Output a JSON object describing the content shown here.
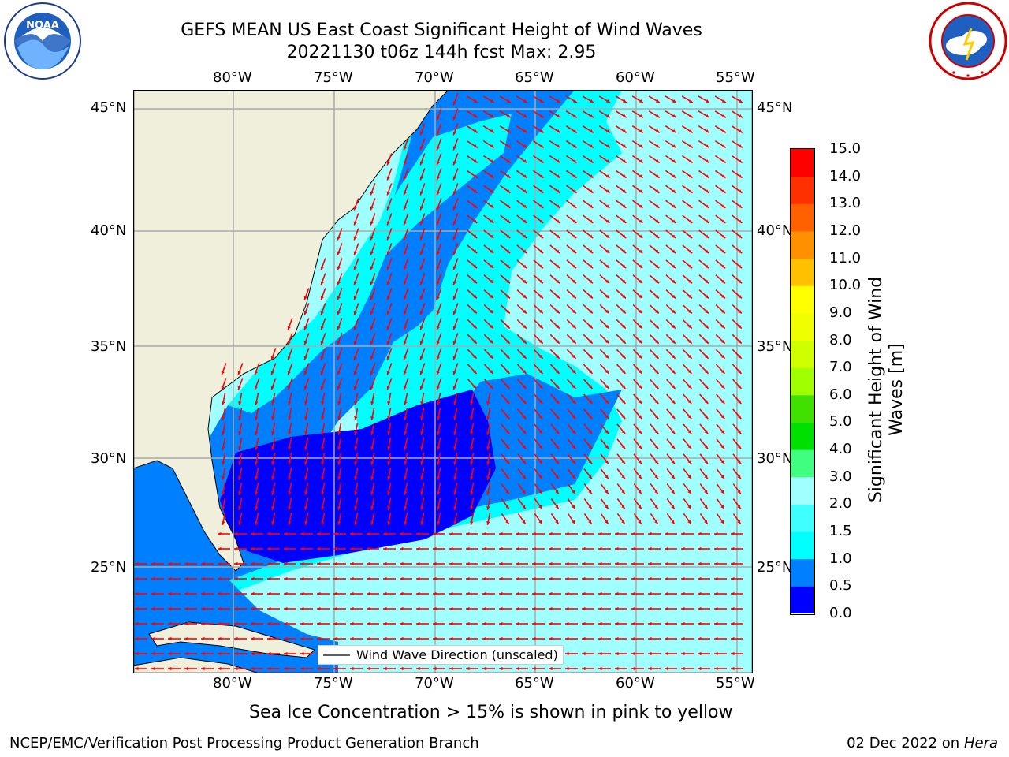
{
  "title_line1": "GEFS MEAN US East Coast Significant Height of Wind Waves",
  "title_line2": "20221130 t06z 144h fcst   Max: 2.95",
  "logos": {
    "left": "NOAA",
    "left_ring_text": "NATIONAL OCEANIC AND ATMOSPHERIC ADMINISTRATION · U.S. DEPARTMENT OF COMMERCE",
    "right_ring_text": "NATIONAL WEATHER SERVICE"
  },
  "lon_ticks": [
    "80°W",
    "75°W",
    "70°W",
    "65°W",
    "60°W",
    "55°W"
  ],
  "lat_ticks": [
    "45°N",
    "40°N",
    "35°N",
    "30°N",
    "25°N"
  ],
  "colorbar": {
    "label_line1": "Significant Height of Wind",
    "label_line2": "Waves [m]",
    "ticks": [
      "15.0",
      "14.0",
      "13.0",
      "12.0",
      "11.0",
      "10.0",
      "9.0",
      "8.0",
      "7.0",
      "6.0",
      "5.0",
      "4.0",
      "3.0",
      "2.0",
      "1.5",
      "1.0",
      "0.5",
      "0.0"
    ],
    "colors_bottom_to_top": [
      "#0000ff",
      "#0080ff",
      "#00ffff",
      "#40ffff",
      "#a0ffff",
      "#40ff80",
      "#00e000",
      "#40e000",
      "#a0ff00",
      "#d0ff00",
      "#f0ff00",
      "#ffff00",
      "#ffc000",
      "#ff9000",
      "#ff6000",
      "#ff3000",
      "#ff0000"
    ]
  },
  "map_colors": {
    "land": "#efefdb",
    "wave_dark": "#0000ff",
    "wave_mid": "#0080ff",
    "wave_cyan": "#00ffff",
    "wave_light": "#a0ffff",
    "arrow": "#ff0000",
    "grid": "#aaaaaa"
  },
  "legend_label": "Wind Wave Direction (unscaled)",
  "sea_ice_note": "Sea Ice Concentration > 15% is shown in pink to yellow",
  "footer_left": "NCEP/EMC/Verification Post Processing Product Generation Branch",
  "footer_date": "02 Dec 2022 on",
  "footer_machine": "Hera"
}
